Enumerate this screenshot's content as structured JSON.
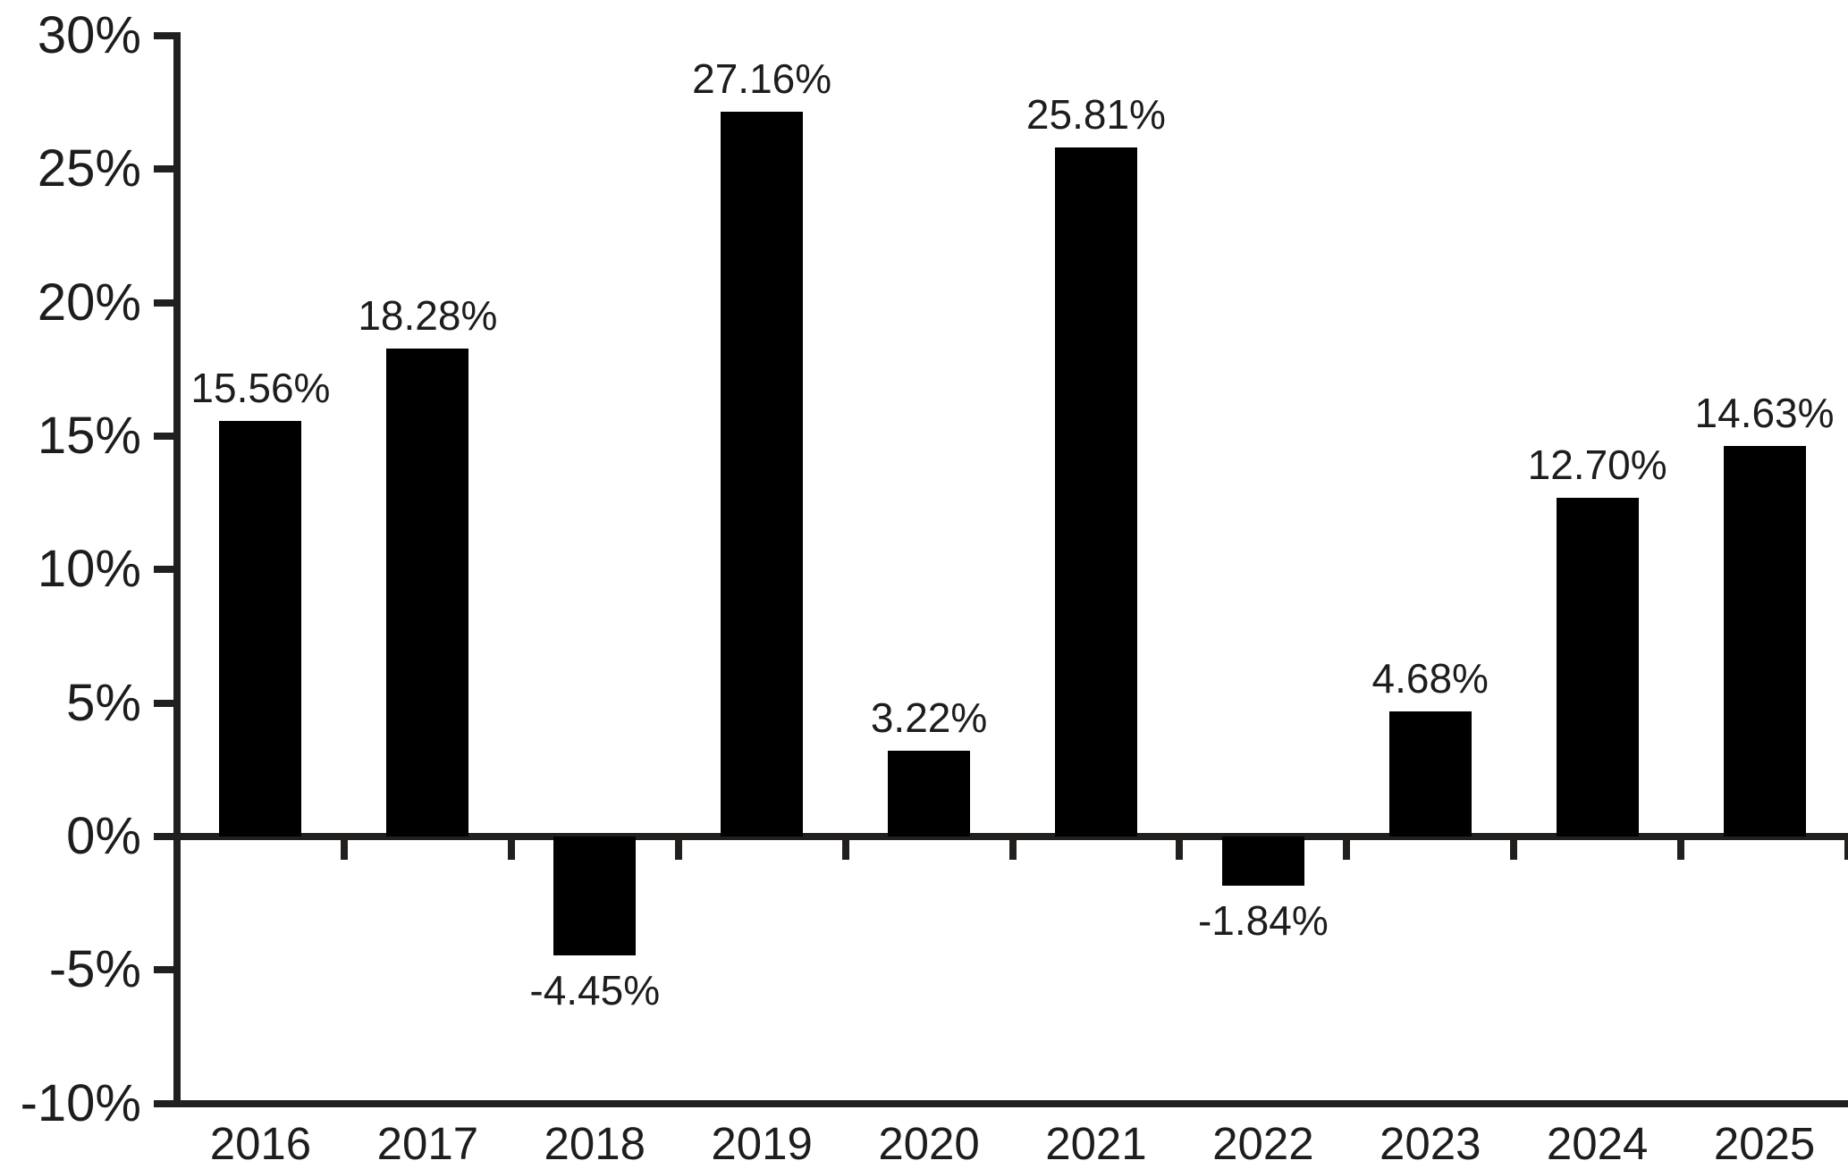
{
  "chart_data": {
    "type": "bar",
    "title": "",
    "xlabel": "",
    "ylabel": "",
    "categories": [
      "2016",
      "2017",
      "2018",
      "2019",
      "2020",
      "2021",
      "2022",
      "2023",
      "2024",
      "2025"
    ],
    "values": [
      15.56,
      18.28,
      -4.45,
      27.16,
      3.22,
      25.81,
      -1.84,
      4.68,
      12.7,
      14.63
    ],
    "data_labels": [
      "15.56%",
      "18.28%",
      "-4.45%",
      "27.16%",
      "3.22%",
      "25.81%",
      "-1.84%",
      "4.68%",
      "12.70%",
      "14.63%"
    ],
    "ylim": [
      -10,
      30
    ],
    "ytick_step": 5,
    "ytick_labels": [
      "30%",
      "25%",
      "20%",
      "15%",
      "10%",
      "5%",
      "0%",
      "-5%",
      "-10%"
    ],
    "grid": false,
    "legend": false,
    "colors": {
      "bar": "#000000",
      "axis": "#221f1f",
      "text": "#1d1d1b",
      "background": "#ffffff"
    }
  }
}
